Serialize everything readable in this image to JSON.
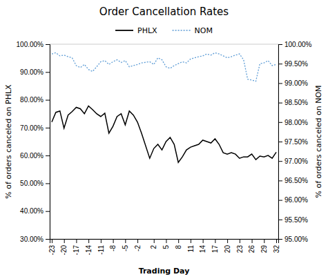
{
  "chart_data": {
    "type": "line",
    "title": "Order Cancellation Rates",
    "xlabel": "Trading Day",
    "ylabel": "% of orders canceled on PHLX",
    "y2label": "% of orders canceled on NOM",
    "x": [
      -23,
      -22,
      -21,
      -20,
      -19,
      -18,
      -17,
      -16,
      -15,
      -14,
      -13,
      -12,
      -11,
      -10,
      -9,
      -8,
      -7,
      -6,
      -5,
      -4,
      -3,
      -2,
      -1,
      1,
      2,
      3,
      4,
      5,
      6,
      7,
      8,
      9,
      10,
      11,
      12,
      13,
      14,
      15,
      16,
      17,
      18,
      19,
      20,
      21,
      22,
      23,
      24,
      25,
      26,
      27,
      28,
      29,
      30,
      31,
      32
    ],
    "series": [
      {
        "name": "PHLX",
        "color": "#000000",
        "line_style": "solid",
        "values": [
          0.72,
          0.755,
          0.76,
          0.698,
          0.745,
          0.758,
          0.773,
          0.768,
          0.75,
          0.778,
          0.765,
          0.75,
          0.74,
          0.752,
          0.68,
          0.705,
          0.74,
          0.75,
          0.71,
          0.76,
          0.745,
          0.72,
          0.68,
          0.59,
          0.625,
          0.64,
          0.62,
          0.65,
          0.665,
          0.64,
          0.575,
          0.595,
          0.62,
          0.63,
          0.635,
          0.64,
          0.655,
          0.65,
          0.645,
          0.66,
          0.64,
          0.61,
          0.605,
          0.61,
          0.605,
          0.59,
          0.595,
          0.595,
          0.605,
          0.585,
          0.598,
          0.595,
          0.6,
          0.59,
          0.612
        ]
      },
      {
        "name": "NOM",
        "color": "#5b9bd5",
        "line_style": "dotted",
        "axis": "y2",
        "values": [
          0.9975,
          0.9978,
          0.997,
          0.9972,
          0.9968,
          0.9965,
          0.9945,
          0.994,
          0.9948,
          0.9935,
          0.993,
          0.9942,
          0.9955,
          0.9958,
          0.9948,
          0.9955,
          0.996,
          0.9953,
          0.9958,
          0.9942,
          0.9945,
          0.9948,
          0.9952,
          0.9955,
          0.9948,
          0.9965,
          0.996,
          0.9942,
          0.9938,
          0.9945,
          0.995,
          0.9955,
          0.9952,
          0.9962,
          0.9965,
          0.9968,
          0.997,
          0.9975,
          0.9972,
          0.9978,
          0.9975,
          0.997,
          0.9965,
          0.9968,
          0.9972,
          0.9975,
          0.996,
          0.991,
          0.9908,
          0.9905,
          0.995,
          0.9952,
          0.9958,
          0.9945,
          0.9948
        ]
      }
    ],
    "xlim": [
      -23.5,
      32.5
    ],
    "xticks": [
      -23,
      -20,
      -17,
      -14,
      -11,
      -8,
      -5,
      -2,
      2,
      5,
      8,
      11,
      14,
      17,
      20,
      23,
      26,
      29,
      32
    ],
    "ylim": [
      0.3,
      1.0
    ],
    "yticks": [
      {
        "value": 0.3,
        "label": "30.00%"
      },
      {
        "value": 0.4,
        "label": "40.00%"
      },
      {
        "value": 0.5,
        "label": "50.00%"
      },
      {
        "value": 0.6,
        "label": "60.00%"
      },
      {
        "value": 0.7,
        "label": "70.00%"
      },
      {
        "value": 0.8,
        "label": "80.00%"
      },
      {
        "value": 0.9,
        "label": "90.00%"
      },
      {
        "value": 1.0,
        "label": "100.00%"
      }
    ],
    "y2lim": [
      0.95,
      1.0
    ],
    "y2ticks": [
      {
        "value": 0.95,
        "label": "95.00%"
      },
      {
        "value": 0.955,
        "label": "95.50%"
      },
      {
        "value": 0.96,
        "label": "96.00%"
      },
      {
        "value": 0.965,
        "label": "96.50%"
      },
      {
        "value": 0.97,
        "label": "97.00%"
      },
      {
        "value": 0.975,
        "label": "97.50%"
      },
      {
        "value": 0.98,
        "label": "98.00%"
      },
      {
        "value": 0.985,
        "label": "98.50%"
      },
      {
        "value": 0.99,
        "label": "99.00%"
      },
      {
        "value": 0.995,
        "label": "99.50%"
      },
      {
        "value": 1.0,
        "label": "100.00%"
      }
    ],
    "grid": false,
    "legend": "top"
  }
}
